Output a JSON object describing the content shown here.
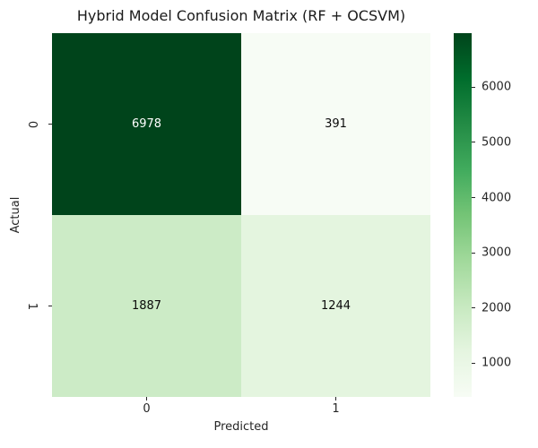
{
  "figure": {
    "background": "#ffffff",
    "text_color": "#262626"
  },
  "chart_data": {
    "type": "heatmap",
    "title": "Hybrid Model Confusion Matrix (RF + OCSVM)",
    "xlabel": "Predicted",
    "ylabel": "Actual",
    "x_tick_labels": [
      "0",
      "1"
    ],
    "y_tick_labels": [
      "0",
      "1"
    ],
    "matrix": [
      [
        6978,
        391
      ],
      [
        1887,
        1244
      ]
    ],
    "vmin": 391,
    "vmax": 6978,
    "colormap": "Greens",
    "colormap_stops": [
      {
        "t": 0.0,
        "color": "#f7fcf5"
      },
      {
        "t": 0.125,
        "color": "#e5f5e0"
      },
      {
        "t": 0.25,
        "color": "#c7e9c0"
      },
      {
        "t": 0.375,
        "color": "#a1d99b"
      },
      {
        "t": 0.5,
        "color": "#74c476"
      },
      {
        "t": 0.625,
        "color": "#41ab5d"
      },
      {
        "t": 0.75,
        "color": "#238b45"
      },
      {
        "t": 0.875,
        "color": "#006d2c"
      },
      {
        "t": 1.0,
        "color": "#00441b"
      }
    ],
    "colorbar_ticks": [
      1000,
      2000,
      3000,
      4000,
      5000,
      6000
    ],
    "annot_dark_color": "#0a0a0a",
    "annot_light_color": "#ffffff",
    "legend_position": "right-colorbar",
    "grid": false
  }
}
